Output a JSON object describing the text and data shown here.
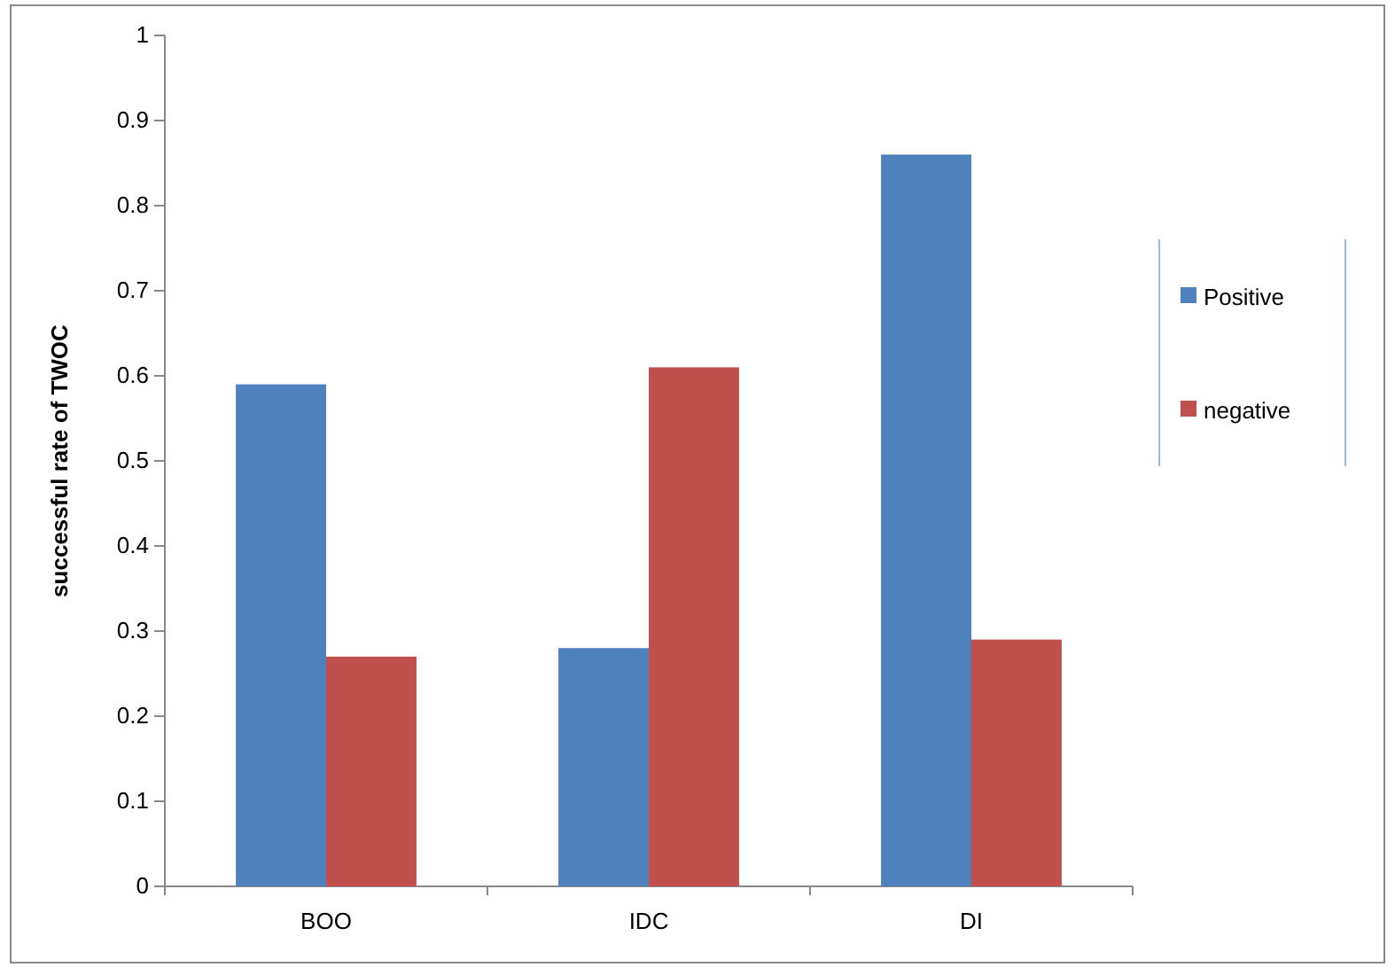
{
  "chart_data": {
    "type": "bar",
    "ylabel": "successful rate of TWOC",
    "categories": [
      "BOO",
      "IDC",
      "DI"
    ],
    "series": [
      {
        "name": "Positive",
        "color": "#4f81bd",
        "values": [
          0.59,
          0.28,
          0.86
        ]
      },
      {
        "name": "negative",
        "color": "#c0504d",
        "values": [
          0.27,
          0.61,
          0.29
        ]
      }
    ],
    "ylim": [
      0,
      1
    ],
    "yticks": [
      0,
      0.1,
      0.2,
      0.3,
      0.4,
      0.5,
      0.6,
      0.7,
      0.8,
      0.9,
      1
    ],
    "grid": false,
    "legend": "right"
  }
}
